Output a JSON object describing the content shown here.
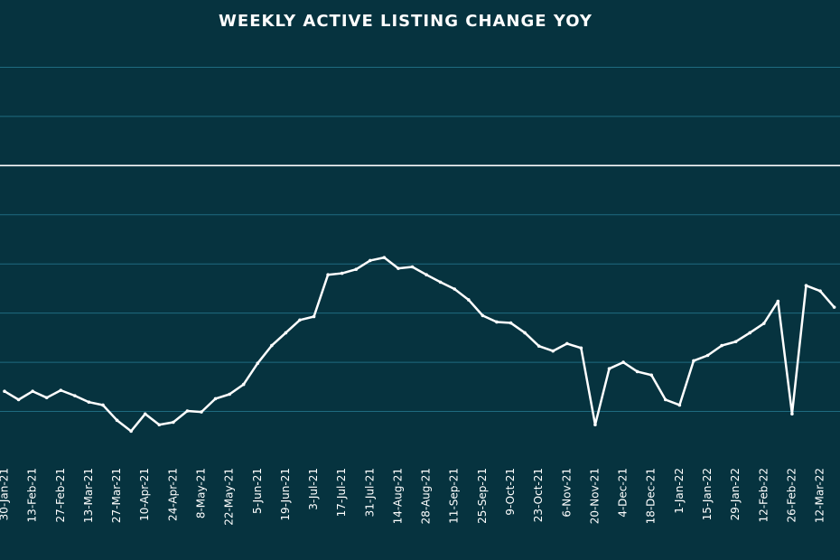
{
  "chart_data": {
    "type": "line",
    "title": "WEEKLY ACTIVE LISTING CHANGE YOY",
    "categories": [
      "30-Jan-21",
      null,
      "13-Feb-21",
      null,
      "27-Feb-21",
      null,
      "13-Mar-21",
      null,
      "27-Mar-21",
      null,
      "10-Apr-21",
      null,
      "24-Apr-21",
      null,
      "8-May-21",
      null,
      "22-May-21",
      null,
      "5-Jun-21",
      null,
      "19-Jun-21",
      null,
      "3-Jul-21",
      null,
      "17-Jul-21",
      null,
      "31-Jul-21",
      null,
      "14-Aug-21",
      null,
      "28-Aug-21",
      null,
      "11-Sep-21",
      null,
      "25-Sep-21",
      null,
      "9-Oct-21",
      null,
      "23-Oct-21",
      null,
      "6-Nov-21",
      null,
      "20-Nov-21",
      null,
      "4-Dec-21",
      null,
      "18-Dec-21",
      null,
      "1-Jan-22",
      null,
      "15-Jan-22",
      null,
      "29-Jan-22",
      null,
      "12-Feb-22",
      null,
      "26-Feb-22",
      null,
      "12-Mar-22",
      null
    ],
    "series": [
      {
        "color": "#ffffff",
        "values": [
          -45.9,
          -47.6,
          -45.9,
          -47.2,
          -45.7,
          -46.8,
          -48.1,
          -48.7,
          -51.8,
          -54.0,
          -50.5,
          -52.7,
          -52.2,
          -49.9,
          -50.1,
          -47.4,
          -46.5,
          -44.5,
          -40.2,
          -36.6,
          -34.0,
          -31.4,
          -30.7,
          -22.2,
          -21.9,
          -21.1,
          -19.3,
          -18.7,
          -20.9,
          -20.6,
          -22.2,
          -23.7,
          -25.1,
          -27.3,
          -30.5,
          -31.8,
          -32.0,
          -34.0,
          -36.7,
          -37.7,
          -36.2,
          -37.1,
          -52.7,
          -41.3,
          -40.0,
          -41.9,
          -42.6,
          -47.6,
          -48.7,
          -39.7,
          -38.6,
          -36.6,
          -35.8,
          -34.0,
          -32.1,
          -27.6,
          -50.5,
          -24.4,
          -25.5,
          -28.8
        ]
      }
    ],
    "ylim": [
      -60,
      30
    ],
    "yticks": [
      -50,
      -40,
      -30,
      -20,
      -10,
      0,
      10,
      20
    ],
    "grid": true
  }
}
